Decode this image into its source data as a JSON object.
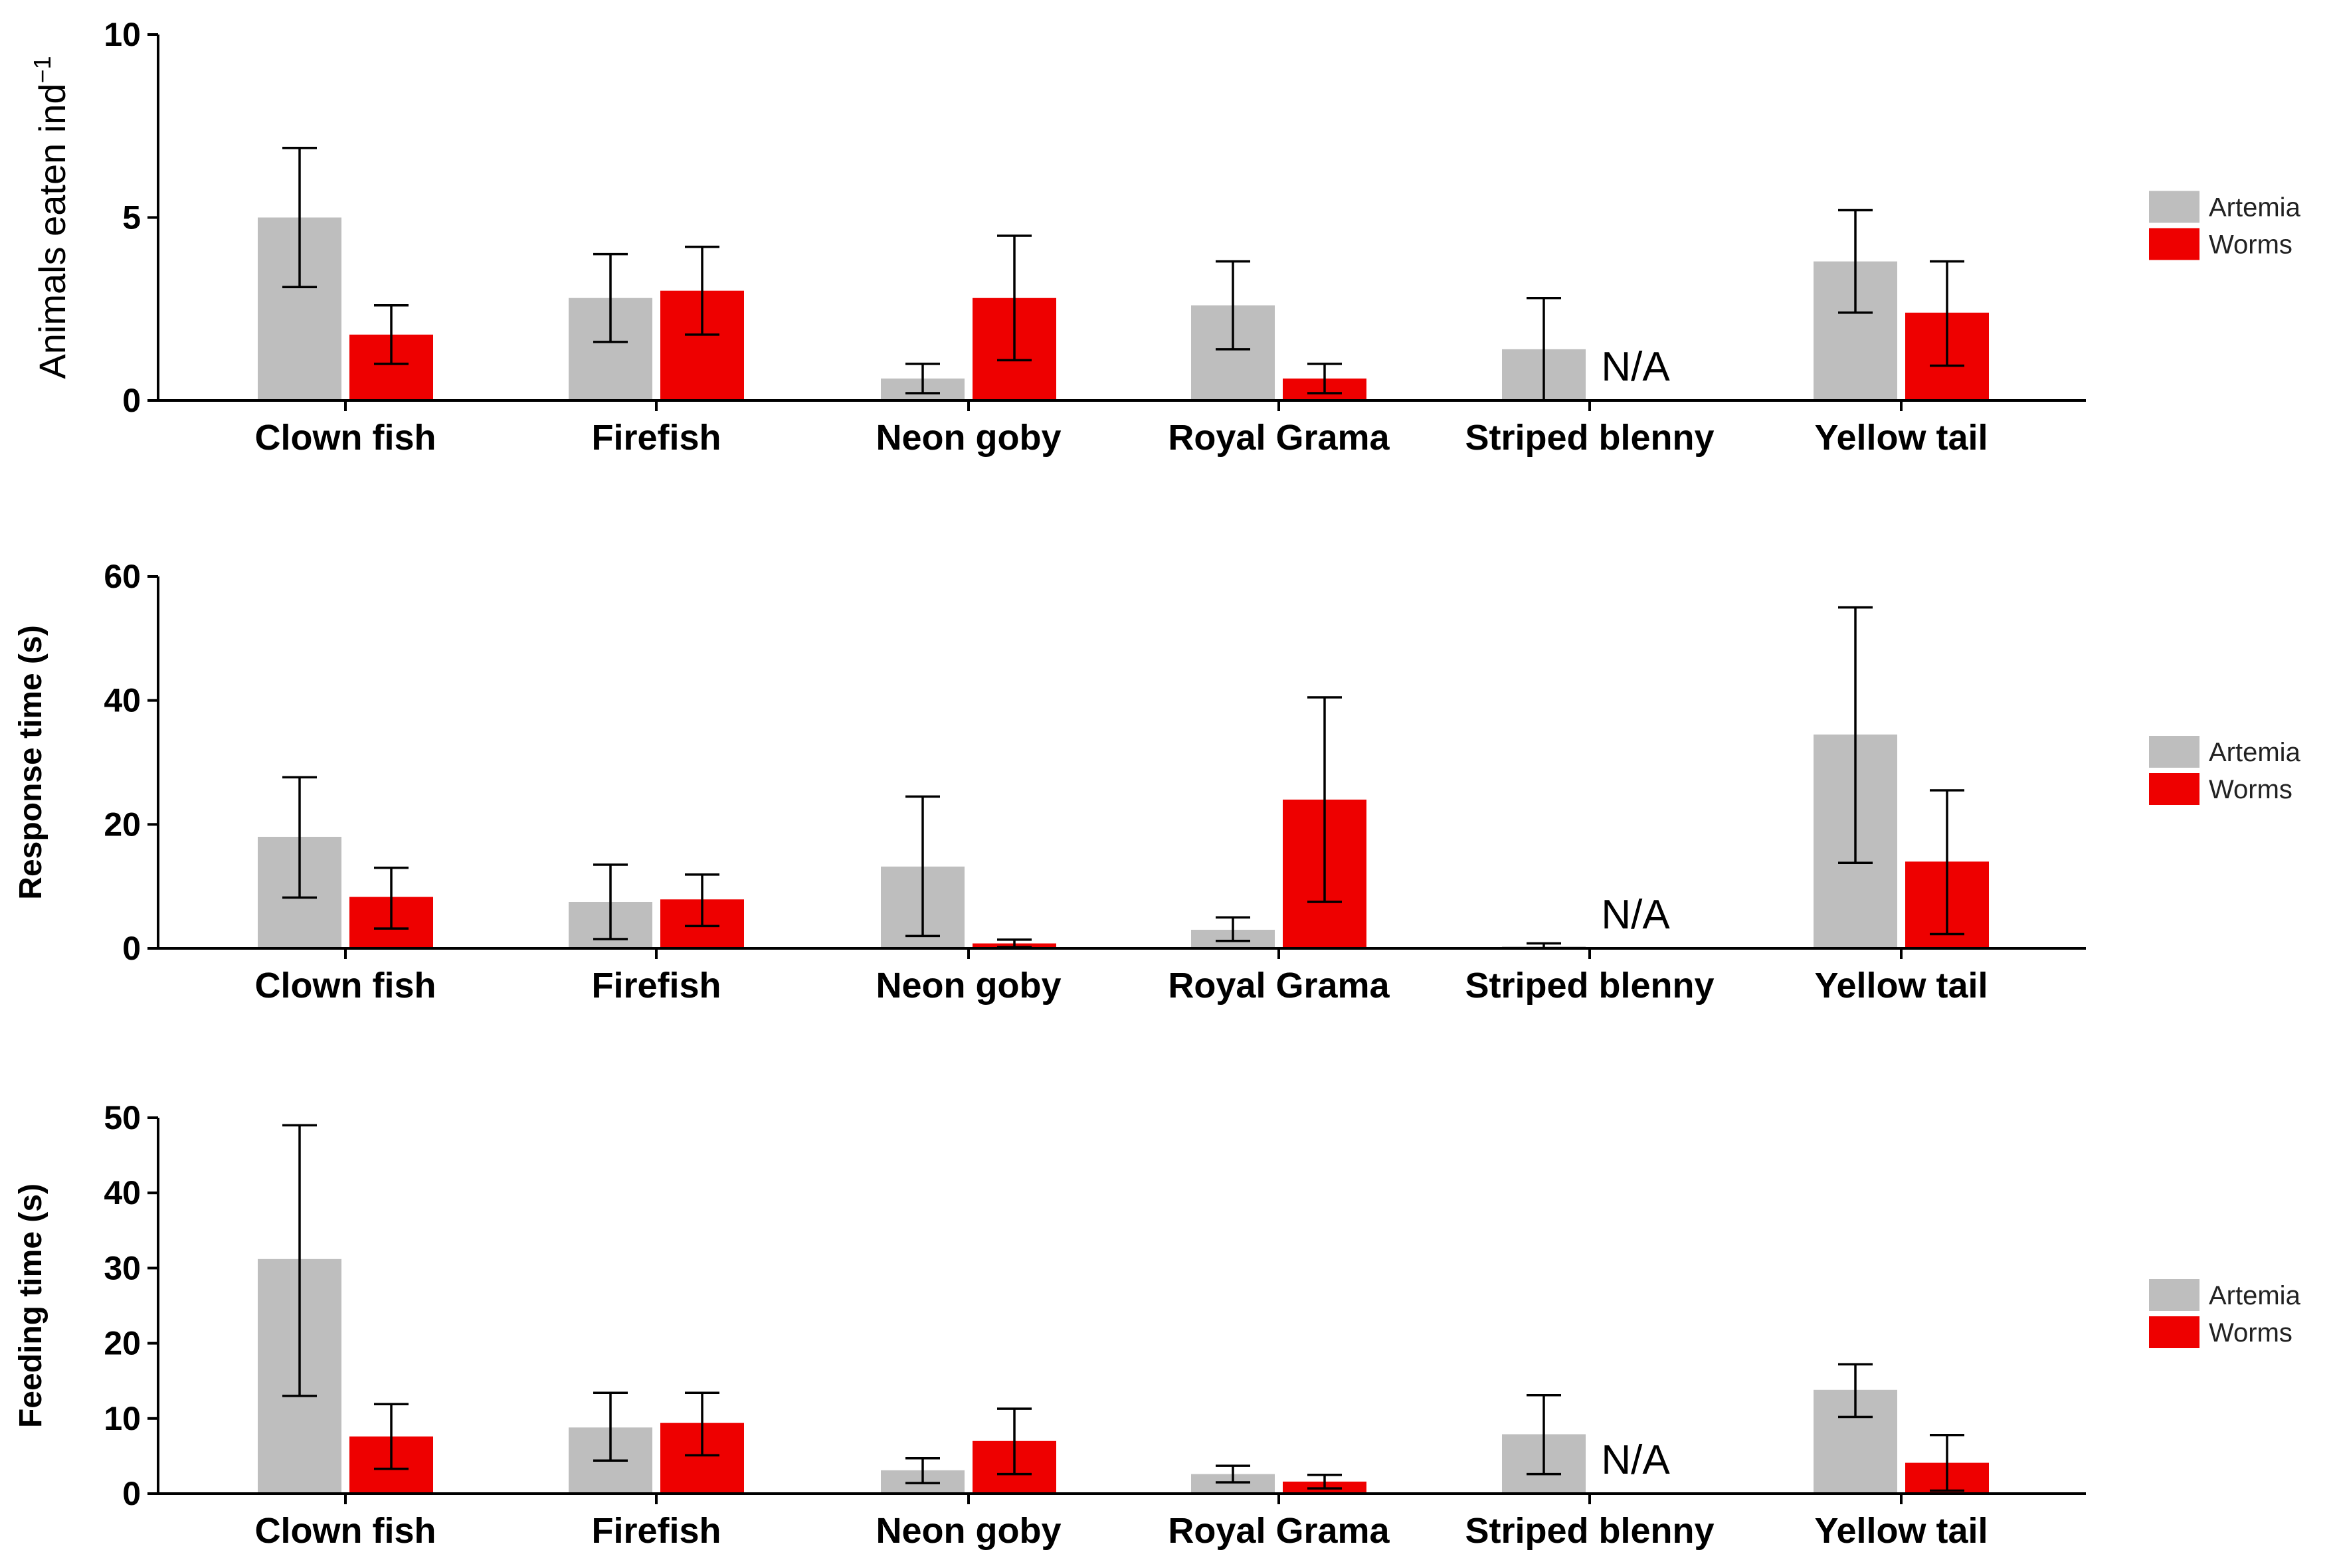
{
  "chart_data": [
    {
      "type": "bar",
      "ylabel": "Animals eaten ind",
      "ylabel_sup": "−1",
      "ylim": [
        0,
        10
      ],
      "yticks": [
        "0",
        "5",
        "10"
      ],
      "categories": [
        "Clown fish",
        "Firefish",
        "Neon goby",
        "Royal Grama",
        "Striped blenny",
        "Yellow tail"
      ],
      "series": [
        {
          "name": "Artemia",
          "color": "#bebebe",
          "values": [
            5.0,
            2.8,
            0.6,
            2.6,
            1.4,
            3.8
          ],
          "err_low": [
            3.1,
            1.6,
            0.2,
            1.4,
            0.0,
            2.4
          ],
          "err_high": [
            6.9,
            4.0,
            1.0,
            3.8,
            2.8,
            5.2
          ]
        },
        {
          "name": "Worms",
          "color": "#ee0000",
          "values": [
            1.8,
            3.0,
            2.8,
            0.6,
            null,
            2.4
          ],
          "err_low": [
            1.0,
            1.8,
            1.1,
            0.2,
            null,
            0.95
          ],
          "err_high": [
            2.6,
            4.2,
            4.5,
            1.0,
            null,
            3.8
          ]
        }
      ],
      "annotations": [
        {
          "category": "Striped blenny",
          "text": "N/A"
        }
      ],
      "legend": {
        "position": "right",
        "entries": [
          "Artemia",
          "Worms"
        ]
      }
    },
    {
      "type": "bar",
      "ylabel": "Response time (s)",
      "ylim": [
        0,
        60
      ],
      "yticks": [
        "0",
        "20",
        "40",
        "60"
      ],
      "categories": [
        "Clown fish",
        "Firefish",
        "Neon goby",
        "Royal Grama",
        "Striped blenny",
        "Yellow tail"
      ],
      "series": [
        {
          "name": "Artemia",
          "color": "#bebebe",
          "values": [
            18,
            7.5,
            13.2,
            3.0,
            0.3,
            34.5
          ],
          "err_low": [
            8.2,
            1.5,
            2.0,
            1.2,
            0.0,
            13.8
          ],
          "err_high": [
            27.6,
            13.5,
            24.5,
            5.0,
            0.8,
            55.0
          ]
        },
        {
          "name": "Worms",
          "color": "#ee0000",
          "values": [
            8.3,
            7.9,
            0.8,
            24,
            null,
            14
          ],
          "err_low": [
            3.2,
            3.6,
            0.2,
            7.5,
            null,
            2.3
          ],
          "err_high": [
            13.0,
            11.9,
            1.4,
            40.5,
            null,
            25.5
          ]
        }
      ],
      "annotations": [
        {
          "category": "Striped blenny",
          "text": "N/A"
        }
      ],
      "legend": {
        "position": "right",
        "entries": [
          "Artemia",
          "Worms"
        ]
      }
    },
    {
      "type": "bar",
      "ylabel": "Feeding time (s)",
      "ylim": [
        0,
        50
      ],
      "yticks": [
        "0",
        "10",
        "20",
        "30",
        "40",
        "50"
      ],
      "categories": [
        "Clown fish",
        "Firefish",
        "Neon goby",
        "Royal Grama",
        "Striped blenny",
        "Yellow tail"
      ],
      "series": [
        {
          "name": "Artemia",
          "color": "#bebebe",
          "values": [
            31.2,
            8.8,
            3.1,
            2.6,
            7.9,
            13.8
          ],
          "err_low": [
            13.0,
            4.4,
            1.4,
            1.5,
            2.6,
            10.2
          ],
          "err_high": [
            49.0,
            13.4,
            4.7,
            3.7,
            13.1,
            17.2
          ]
        },
        {
          "name": "Worms",
          "color": "#ee0000",
          "values": [
            7.6,
            9.4,
            7.0,
            1.6,
            null,
            4.1
          ],
          "err_low": [
            3.3,
            5.1,
            2.6,
            0.7,
            null,
            0.4
          ],
          "err_high": [
            11.9,
            13.4,
            11.3,
            2.5,
            null,
            7.8
          ]
        }
      ],
      "annotations": [
        {
          "category": "Striped blenny",
          "text": "N/A"
        }
      ],
      "legend": {
        "position": "right",
        "entries": [
          "Artemia",
          "Worms"
        ]
      }
    }
  ]
}
